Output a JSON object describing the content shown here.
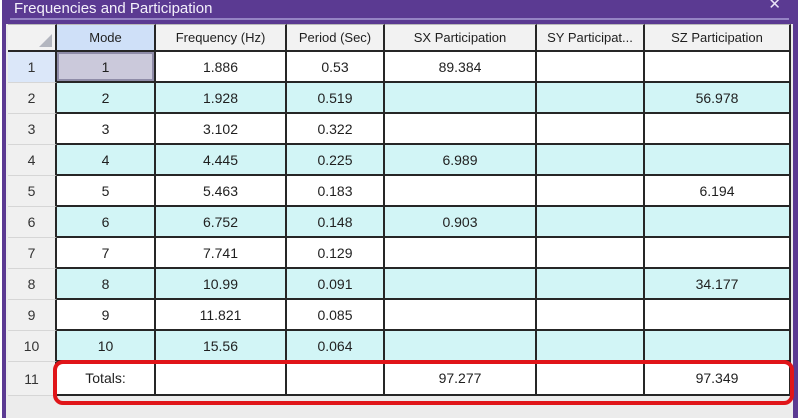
{
  "window": {
    "title": "Frequencies and Participation",
    "close_glyph": "✕"
  },
  "grid": {
    "columns": {
      "corner": "",
      "mode": "Mode",
      "frequency": "Frequency (Hz)",
      "period": "Period (Sec)",
      "sx": "SX Participation",
      "sy": "SY Participat...",
      "sz": "SZ Participation"
    },
    "rows": [
      {
        "num": "1",
        "mode": "1",
        "frequency": "1.886",
        "period": "0.53",
        "sx": "89.384",
        "sy": "",
        "sz": ""
      },
      {
        "num": "2",
        "mode": "2",
        "frequency": "1.928",
        "period": "0.519",
        "sx": "",
        "sy": "",
        "sz": "56.978"
      },
      {
        "num": "3",
        "mode": "3",
        "frequency": "3.102",
        "period": "0.322",
        "sx": "",
        "sy": "",
        "sz": ""
      },
      {
        "num": "4",
        "mode": "4",
        "frequency": "4.445",
        "period": "0.225",
        "sx": "6.989",
        "sy": "",
        "sz": ""
      },
      {
        "num": "5",
        "mode": "5",
        "frequency": "5.463",
        "period": "0.183",
        "sx": "",
        "sy": "",
        "sz": "6.194"
      },
      {
        "num": "6",
        "mode": "6",
        "frequency": "6.752",
        "period": "0.148",
        "sx": "0.903",
        "sy": "",
        "sz": ""
      },
      {
        "num": "7",
        "mode": "7",
        "frequency": "7.741",
        "period": "0.129",
        "sx": "",
        "sy": "",
        "sz": ""
      },
      {
        "num": "8",
        "mode": "8",
        "frequency": "10.99",
        "period": "0.091",
        "sx": "",
        "sy": "",
        "sz": "34.177"
      },
      {
        "num": "9",
        "mode": "9",
        "frequency": "11.821",
        "period": "0.085",
        "sx": "",
        "sy": "",
        "sz": ""
      },
      {
        "num": "10",
        "mode": "10",
        "frequency": "15.56",
        "period": "0.064",
        "sx": "",
        "sy": "",
        "sz": ""
      },
      {
        "num": "11",
        "mode": "Totals:",
        "frequency": "",
        "period": "",
        "sx": "97.277",
        "sy": "",
        "sz": "97.349"
      }
    ],
    "selected_cell": {
      "row_index": 0,
      "column": "mode"
    },
    "totals_row_index": 10
  },
  "colors": {
    "titlebar_purple": "#5b3a92",
    "titlebar_accent_line": "#9583c4",
    "alt_row_cyan": "#d2f5f6",
    "selected_column_header_blue": "#cfe0f8",
    "selected_cell_gray": "#cbc9db",
    "grid_line": "#262626",
    "annotation_red": "#e01519"
  }
}
